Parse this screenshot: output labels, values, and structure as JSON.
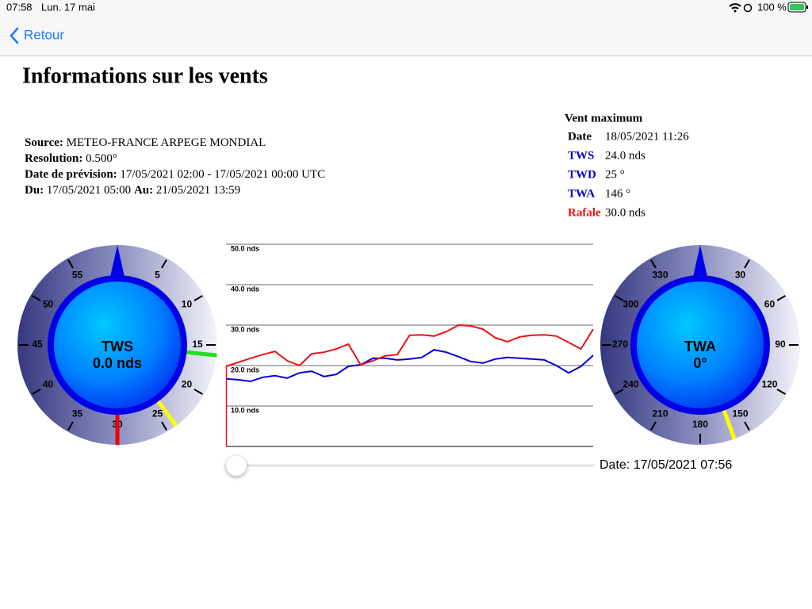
{
  "status_bar": {
    "time": "07:58",
    "date": "Lun. 17 mai",
    "battery": "100 %"
  },
  "nav": {
    "back": "Retour"
  },
  "header": {
    "title": "Informations sur les vents"
  },
  "source_info": {
    "lines": [
      {
        "parts": [
          {
            "label": "Source:",
            "value": "METEO-FRANCE ARPEGE MONDIAL"
          }
        ]
      },
      {
        "parts": [
          {
            "label": "Resolution:",
            "value": "0.500°"
          }
        ]
      },
      {
        "parts": [
          {
            "label": "Date de prévision:",
            "value": "17/05/2021 02:00 - 17/05/2021 00:00 UTC"
          }
        ]
      },
      {
        "parts": [
          {
            "label": "Du:",
            "value": "17/05/2021 05:00"
          },
          {
            "label": "Au:",
            "value": "21/05/2021 13:59"
          }
        ]
      }
    ]
  },
  "max_wind": {
    "title": "Vent maximum",
    "rows": [
      {
        "label": "Date",
        "value": "18/05/2021 11:26",
        "color": "#000000"
      },
      {
        "label": "TWS",
        "value": "24.0 nds",
        "color": "#0000cc"
      },
      {
        "label": "TWD",
        "value": "25 °",
        "color": "#0000cc"
      },
      {
        "label": "TWA",
        "value": "146 °",
        "color": "#0000cc"
      },
      {
        "label": "Rafale",
        "value": "30.0 nds",
        "color": "#ee1111"
      }
    ]
  },
  "gauges": [
    {
      "label": "TWS",
      "reading": "0.0 nds",
      "range": [
        0,
        60
      ],
      "ticks": [
        5,
        10,
        15,
        20,
        25,
        30,
        35,
        40,
        45,
        50,
        55
      ],
      "needles": [
        {
          "value": 16,
          "color": "#22dd22"
        },
        {
          "value": 24,
          "color": "#ffff00"
        },
        {
          "value": 30,
          "color": "#ee0000"
        }
      ]
    },
    {
      "label": "TWA",
      "reading": "0°",
      "range": [
        0,
        360
      ],
      "ticks": [
        30,
        60,
        90,
        120,
        150,
        180,
        210,
        240,
        270,
        300,
        330
      ],
      "needles": [
        {
          "value": 160,
          "color": "#ffff00"
        }
      ]
    }
  ],
  "wind_chart": {
    "ylim": [
      0,
      50
    ],
    "yticks": [
      {
        "value": 10,
        "label": "10.0 nds"
      },
      {
        "value": 20,
        "label": "20.0 nds"
      },
      {
        "value": 30,
        "label": "30.0 nds"
      },
      {
        "value": 40,
        "label": "40.0 nds"
      },
      {
        "value": 50,
        "label": "50.0 nds"
      }
    ],
    "series": [
      {
        "color": "#0000dd",
        "values": [
          16.7,
          16.5,
          16.1,
          17.1,
          17.5,
          16.9,
          18.2,
          18.6,
          17.3,
          17.8,
          19.8,
          20.2,
          21.8,
          21.8,
          21.4,
          21.6,
          22.0,
          23.9,
          23.3,
          22.2,
          21.0,
          20.6,
          21.6,
          22.0,
          21.8,
          21.6,
          21.4,
          20.0,
          18.2,
          19.8,
          22.5
        ]
      },
      {
        "color": "#ee1111",
        "values": [
          19.8,
          20.8,
          21.8,
          22.7,
          23.5,
          21.2,
          20.0,
          22.9,
          23.3,
          24.1,
          25.3,
          20.2,
          21.2,
          22.4,
          22.7,
          27.5,
          27.6,
          27.3,
          28.4,
          30.0,
          29.8,
          29.0,
          26.9,
          25.9,
          27.1,
          27.5,
          27.6,
          27.3,
          25.7,
          24.1,
          29.0
        ]
      }
    ]
  },
  "date_label": "Date: 17/05/2021 07:56"
}
